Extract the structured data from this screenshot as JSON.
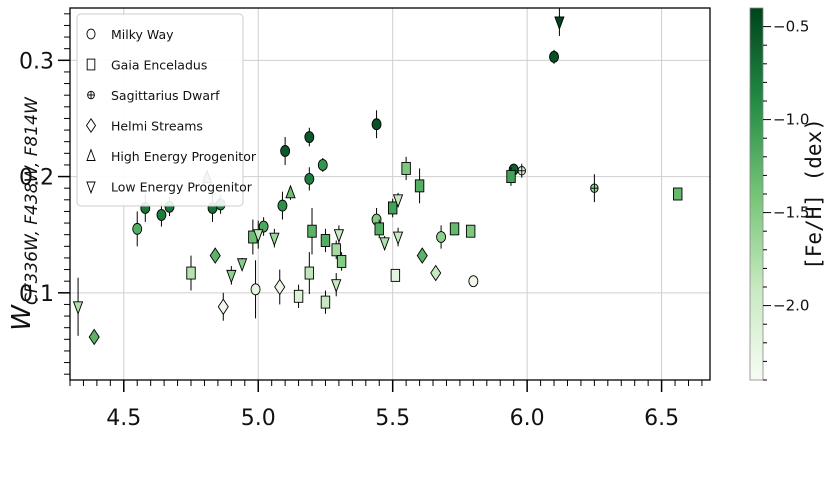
{
  "chart_data": {
    "type": "scatter",
    "xlim": [
      4.3,
      6.68
    ],
    "ylim": [
      0.025,
      0.345
    ],
    "xticks": [
      "4.5",
      "5.0",
      "5.5",
      "6.0",
      "6.5"
    ],
    "yticks": [
      "0.1",
      "0.2",
      "0.3"
    ],
    "ylabel_main": "W",
    "ylabel_sub": "CF336W, F438W, F814W",
    "grid": true,
    "legend_position": "upper-left",
    "colorbar": {
      "label": "[Fe/H] (dex)",
      "range": [
        -2.4,
        -0.4
      ],
      "ticks": [
        "-0.5",
        "-1.0",
        "-1.5",
        "-2.0"
      ],
      "cmap": [
        "#f7fcf5",
        "#c7e9c0",
        "#74c476",
        "#238b45",
        "#00441b"
      ]
    },
    "series": [
      {
        "name": "Milky Way",
        "marker": "circle",
        "points": [
          {
            "x": 4.55,
            "y": 0.155,
            "err": 0.015,
            "feh": -1.2
          },
          {
            "x": 4.58,
            "y": 0.173,
            "err": 0.012,
            "feh": -0.75
          },
          {
            "x": 4.64,
            "y": 0.167,
            "err": 0.01,
            "feh": -0.8
          },
          {
            "x": 4.67,
            "y": 0.174,
            "err": 0.008,
            "feh": -0.75
          },
          {
            "x": 4.83,
            "y": 0.173,
            "err": 0.012,
            "feh": -0.7
          },
          {
            "x": 4.86,
            "y": 0.176,
            "err": 0.008,
            "feh": -0.85
          },
          {
            "x": 4.99,
            "y": 0.103,
            "err": 0.025,
            "feh": -2.2
          },
          {
            "x": 5.02,
            "y": 0.157,
            "err": 0.008,
            "feh": -1.15
          },
          {
            "x": 5.09,
            "y": 0.175,
            "err": 0.012,
            "feh": -0.95
          },
          {
            "x": 5.1,
            "y": 0.222,
            "err": 0.012,
            "feh": -0.55
          },
          {
            "x": 5.19,
            "y": 0.198,
            "err": 0.01,
            "feh": -0.8
          },
          {
            "x": 5.19,
            "y": 0.234,
            "err": 0.008,
            "feh": -0.55
          },
          {
            "x": 5.24,
            "y": 0.21,
            "err": 0.006,
            "feh": -1.0
          },
          {
            "x": 5.44,
            "y": 0.245,
            "err": 0.012,
            "feh": -0.5
          },
          {
            "x": 5.44,
            "y": 0.163,
            "err": 0.01,
            "feh": -1.5
          },
          {
            "x": 5.68,
            "y": 0.148,
            "err": 0.01,
            "feh": -1.55
          },
          {
            "x": 5.8,
            "y": 0.11,
            "err": 0.0,
            "feh": -2.3
          },
          {
            "x": 5.95,
            "y": 0.206,
            "err": 0.005,
            "feh": -0.6
          },
          {
            "x": 6.1,
            "y": 0.303,
            "err": 0.006,
            "feh": -0.5
          }
        ]
      },
      {
        "name": "Gaia Enceladus",
        "marker": "square",
        "points": [
          {
            "x": 4.75,
            "y": 0.117,
            "err": 0.015,
            "feh": -1.8
          },
          {
            "x": 4.98,
            "y": 0.148,
            "err": 0.015,
            "feh": -1.35
          },
          {
            "x": 5.15,
            "y": 0.097,
            "err": 0.01,
            "feh": -2.1
          },
          {
            "x": 5.19,
            "y": 0.117,
            "err": 0.018,
            "feh": -1.85
          },
          {
            "x": 5.2,
            "y": 0.153,
            "err": 0.02,
            "feh": -1.25
          },
          {
            "x": 5.25,
            "y": 0.145,
            "err": 0.01,
            "feh": -1.2
          },
          {
            "x": 5.25,
            "y": 0.092,
            "err": 0.01,
            "feh": -1.9
          },
          {
            "x": 5.29,
            "y": 0.137,
            "err": 0.008,
            "feh": -1.7
          },
          {
            "x": 5.31,
            "y": 0.127,
            "err": 0.008,
            "feh": -1.5
          },
          {
            "x": 5.45,
            "y": 0.155,
            "err": 0.008,
            "feh": -1.2
          },
          {
            "x": 5.5,
            "y": 0.173,
            "err": 0.008,
            "feh": -1.1
          },
          {
            "x": 5.51,
            "y": 0.115,
            "err": 0.0,
            "feh": -2.2
          },
          {
            "x": 5.55,
            "y": 0.207,
            "err": 0.01,
            "feh": -1.45
          },
          {
            "x": 5.6,
            "y": 0.192,
            "err": 0.015,
            "feh": -1.2
          },
          {
            "x": 5.73,
            "y": 0.155,
            "err": 0.005,
            "feh": -1.3
          },
          {
            "x": 5.79,
            "y": 0.153,
            "err": 0.005,
            "feh": -1.45
          },
          {
            "x": 5.94,
            "y": 0.2,
            "err": 0.008,
            "feh": -1.1
          },
          {
            "x": 6.56,
            "y": 0.185,
            "err": 0.0,
            "feh": -1.3
          }
        ]
      },
      {
        "name": "Sagittarius Dwarf",
        "marker": "plus-circle",
        "points": [
          {
            "x": 5.98,
            "y": 0.205,
            "err": 0.006,
            "feh": -2.1
          },
          {
            "x": 6.25,
            "y": 0.19,
            "err": 0.012,
            "feh": -1.6
          }
        ]
      },
      {
        "name": "Helmi Streams",
        "marker": "diamond",
        "points": [
          {
            "x": 4.39,
            "y": 0.062,
            "err": 0.0,
            "feh": -1.25
          },
          {
            "x": 4.84,
            "y": 0.132,
            "err": 0.0,
            "feh": -1.25
          },
          {
            "x": 4.87,
            "y": 0.088,
            "err": 0.012,
            "feh": -2.3
          },
          {
            "x": 5.08,
            "y": 0.105,
            "err": 0.015,
            "feh": -2.3
          },
          {
            "x": 5.61,
            "y": 0.132,
            "err": 0.0,
            "feh": -1.25
          },
          {
            "x": 5.66,
            "y": 0.117,
            "err": 0.0,
            "feh": -1.9
          }
        ]
      },
      {
        "name": "High Energy Progenitor",
        "marker": "triangle-up",
        "points": [
          {
            "x": 4.81,
            "y": 0.199,
            "err": 0.0,
            "feh": -1.3
          },
          {
            "x": 5.12,
            "y": 0.186,
            "err": 0.006,
            "feh": -1.35
          }
        ]
      },
      {
        "name": "Low Energy Progenitor",
        "marker": "triangle-down",
        "points": [
          {
            "x": 4.33,
            "y": 0.088,
            "err": 0.025,
            "feh": -1.75
          },
          {
            "x": 4.9,
            "y": 0.115,
            "err": 0.008,
            "feh": -1.55
          },
          {
            "x": 4.94,
            "y": 0.125,
            "err": 0.005,
            "feh": -1.5
          },
          {
            "x": 5.0,
            "y": 0.15,
            "err": 0.012,
            "feh": -1.85
          },
          {
            "x": 5.06,
            "y": 0.147,
            "err": 0.008,
            "feh": -1.65
          },
          {
            "x": 5.29,
            "y": 0.107,
            "err": 0.01,
            "feh": -1.9
          },
          {
            "x": 5.3,
            "y": 0.15,
            "err": 0.008,
            "feh": -1.9
          },
          {
            "x": 5.47,
            "y": 0.143,
            "err": 0.006,
            "feh": -1.75
          },
          {
            "x": 5.52,
            "y": 0.148,
            "err": 0.008,
            "feh": -1.9
          },
          {
            "x": 5.52,
            "y": 0.18,
            "err": 0.006,
            "feh": -1.9
          },
          {
            "x": 6.12,
            "y": 0.333,
            "err": 0.012,
            "feh": -0.4
          }
        ]
      }
    ]
  }
}
